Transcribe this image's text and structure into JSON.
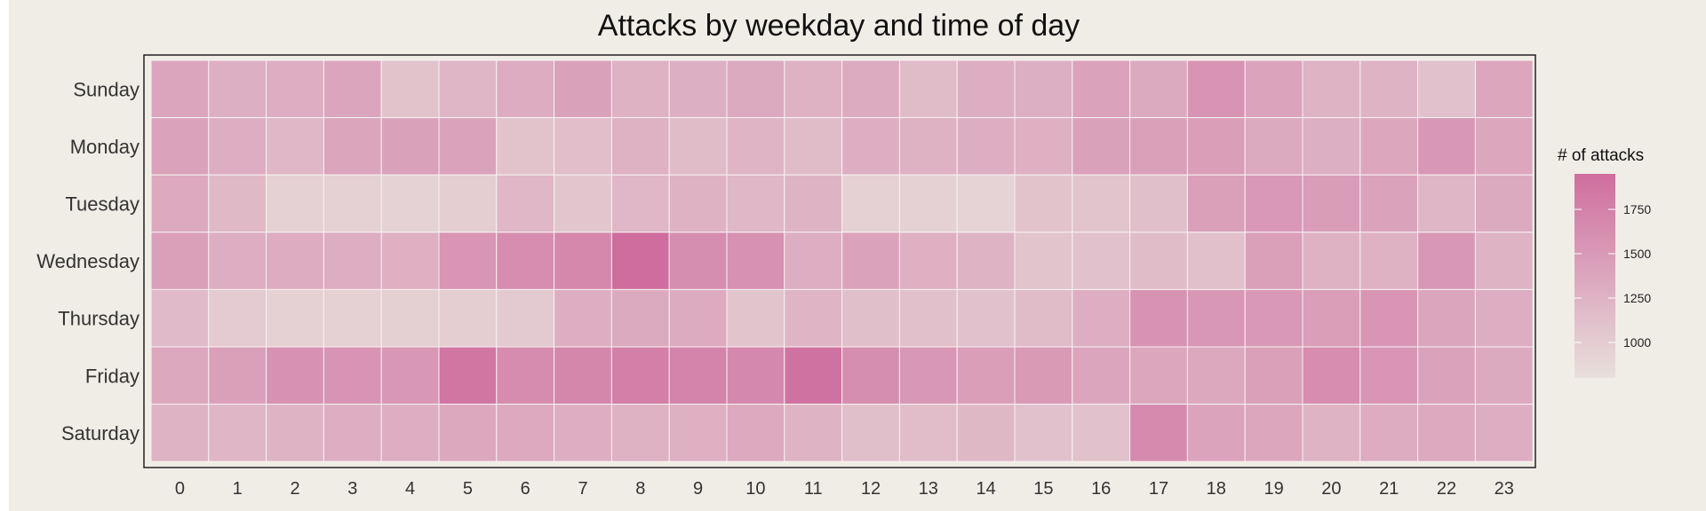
{
  "chart_data": {
    "type": "heatmap",
    "title": "Attacks by weekday and time of day",
    "xlabel": "",
    "ylabel": "",
    "x_categories": [
      "0",
      "1",
      "2",
      "3",
      "4",
      "5",
      "6",
      "7",
      "8",
      "9",
      "10",
      "11",
      "12",
      "13",
      "14",
      "15",
      "16",
      "17",
      "18",
      "19",
      "20",
      "21",
      "22",
      "23"
    ],
    "y_categories": [
      "Sunday",
      "Monday",
      "Tuesday",
      "Wednesday",
      "Thursday",
      "Friday",
      "Saturday"
    ],
    "values": [
      [
        1380,
        1290,
        1310,
        1380,
        1090,
        1220,
        1320,
        1430,
        1270,
        1290,
        1340,
        1260,
        1330,
        1170,
        1300,
        1290,
        1420,
        1340,
        1560,
        1400,
        1250,
        1250,
        1110,
        1370
      ],
      [
        1410,
        1310,
        1210,
        1390,
        1430,
        1410,
        1090,
        1140,
        1260,
        1160,
        1230,
        1160,
        1300,
        1270,
        1300,
        1280,
        1430,
        1450,
        1460,
        1340,
        1290,
        1370,
        1520,
        1370
      ],
      [
        1350,
        1190,
        960,
        960,
        940,
        980,
        1210,
        1060,
        1210,
        1260,
        1210,
        1240,
        960,
        950,
        930,
        1090,
        1080,
        1130,
        1440,
        1510,
        1470,
        1410,
        1220,
        1340
      ],
      [
        1450,
        1300,
        1320,
        1310,
        1280,
        1550,
        1630,
        1690,
        1950,
        1620,
        1590,
        1300,
        1410,
        1280,
        1240,
        1080,
        1110,
        1160,
        1120,
        1450,
        1260,
        1270,
        1530,
        1240
      ],
      [
        1180,
        1010,
        960,
        960,
        970,
        980,
        1030,
        1300,
        1340,
        1330,
        1080,
        1230,
        1130,
        1120,
        1100,
        1160,
        1300,
        1570,
        1530,
        1510,
        1460,
        1540,
        1380,
        1310
      ],
      [
        1360,
        1440,
        1580,
        1560,
        1530,
        1870,
        1640,
        1700,
        1770,
        1730,
        1680,
        1900,
        1620,
        1530,
        1460,
        1500,
        1380,
        1370,
        1360,
        1440,
        1630,
        1550,
        1420,
        1340
      ],
      [
        1250,
        1220,
        1250,
        1300,
        1310,
        1360,
        1350,
        1300,
        1270,
        1280,
        1350,
        1240,
        1130,
        1150,
        1200,
        1100,
        1110,
        1660,
        1400,
        1370,
        1240,
        1320,
        1350,
        1310
      ]
    ],
    "color_low": "#e8e0dc",
    "color_high": "#cf6d9e",
    "color_min": 800,
    "color_max": 1950,
    "legend": {
      "title": "# of attacks",
      "ticks": [
        1000,
        1250,
        1500,
        1750
      ],
      "placement": "right"
    }
  }
}
